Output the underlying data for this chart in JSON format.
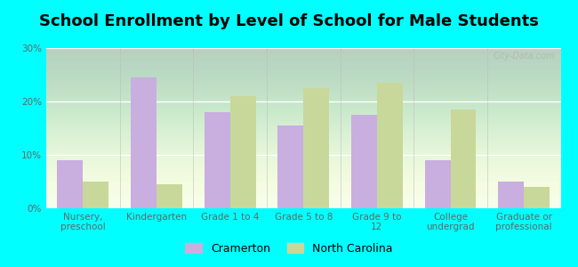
{
  "title": "School Enrollment by Level of School for Male Students",
  "categories": [
    "Nursery,\npreschool",
    "Kindergarten",
    "Grade 1 to 4",
    "Grade 5 to 8",
    "Grade 9 to\n12",
    "College\nundergrad",
    "Graduate or\nprofessional"
  ],
  "cramerton": [
    9.0,
    24.5,
    18.0,
    15.5,
    17.5,
    9.0,
    5.0
  ],
  "north_carolina": [
    5.0,
    4.5,
    21.0,
    22.5,
    23.5,
    18.5,
    4.0
  ],
  "cramerton_color": "#c9aee0",
  "nc_color": "#c8d89a",
  "background_color": "#00ffff",
  "ylim": [
    0,
    30
  ],
  "yticks": [
    0,
    10,
    20,
    30
  ],
  "ytick_labels": [
    "0%",
    "10%",
    "20%",
    "30%"
  ],
  "bar_width": 0.35,
  "legend_labels": [
    "Cramerton",
    "North Carolina"
  ],
  "watermark": "City-Data.com",
  "title_fontsize": 13,
  "tick_fontsize": 7.5,
  "legend_fontsize": 9
}
